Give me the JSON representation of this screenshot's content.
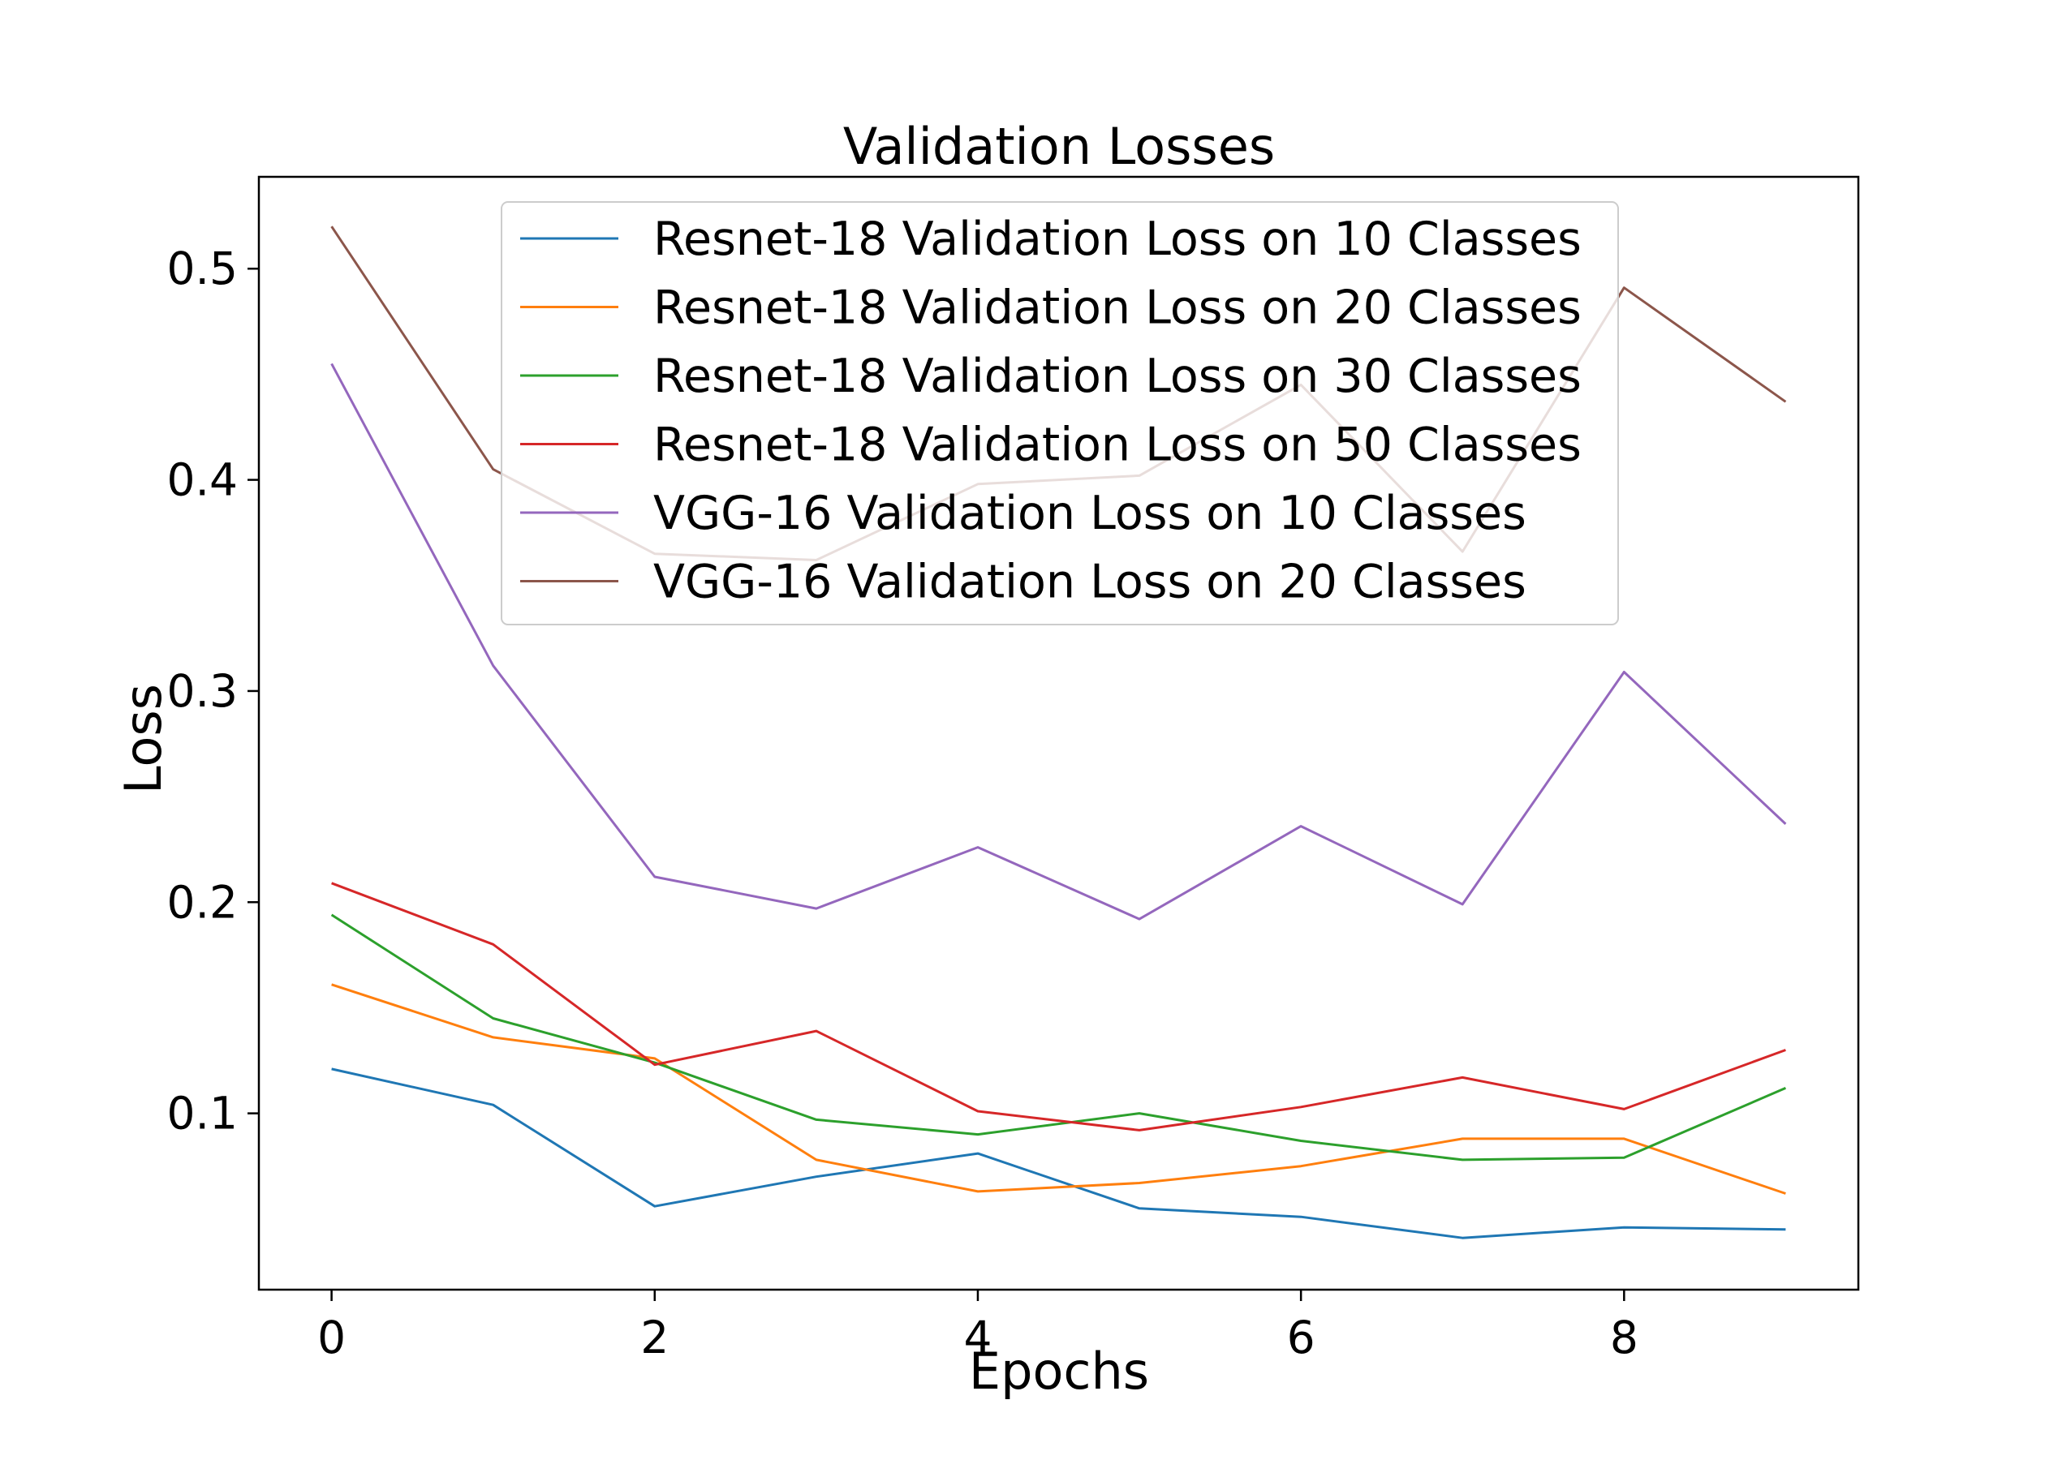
{
  "chart_data": {
    "type": "line",
    "title": "Validation Losses",
    "xlabel": "Epochs",
    "ylabel": "Loss",
    "xlim": [
      -0.45,
      9.45
    ],
    "ylim": [
      0.0165,
      0.5435
    ],
    "xticks": [
      0,
      2,
      4,
      6,
      8
    ],
    "xtick_labels": [
      "0",
      "2",
      "4",
      "6",
      "8"
    ],
    "yticks": [
      0.1,
      0.2,
      0.3,
      0.4,
      0.5
    ],
    "ytick_labels": [
      "0.1",
      "0.2",
      "0.3",
      "0.4",
      "0.5"
    ],
    "grid": false,
    "legend_position": "upper-center",
    "x": [
      0,
      1,
      2,
      3,
      4,
      5,
      6,
      7,
      8,
      9
    ],
    "series": [
      {
        "name": "Resnet-18 Validation Loss on 10 Classes",
        "color": "#1f77b4",
        "values": [
          0.121,
          0.104,
          0.056,
          0.07,
          0.081,
          0.055,
          0.051,
          0.041,
          0.046,
          0.045
        ]
      },
      {
        "name": "Resnet-18 Validation Loss on 20 Classes",
        "color": "#ff7f0e",
        "values": [
          0.161,
          0.136,
          0.126,
          0.078,
          0.063,
          0.067,
          0.075,
          0.088,
          0.088,
          0.062
        ]
      },
      {
        "name": "Resnet-18 Validation Loss on 30 Classes",
        "color": "#2ca02c",
        "values": [
          0.194,
          0.145,
          0.124,
          0.097,
          0.09,
          0.1,
          0.087,
          0.078,
          0.079,
          0.112
        ]
      },
      {
        "name": "Resnet-18 Validation Loss on 50 Classes",
        "color": "#d62728",
        "values": [
          0.209,
          0.18,
          0.123,
          0.139,
          0.101,
          0.092,
          0.103,
          0.117,
          0.102,
          0.13
        ]
      },
      {
        "name": "VGG-16 Validation Loss on 10 Classes",
        "color": "#9467bd",
        "values": [
          0.455,
          0.312,
          0.212,
          0.197,
          0.226,
          0.192,
          0.236,
          0.199,
          0.309,
          0.237
        ]
      },
      {
        "name": "VGG-16 Validation Loss on 20 Classes",
        "color": "#8c564b",
        "values": [
          0.52,
          0.405,
          0.365,
          0.362,
          0.398,
          0.402,
          0.445,
          0.366,
          0.491,
          0.437
        ]
      }
    ]
  }
}
